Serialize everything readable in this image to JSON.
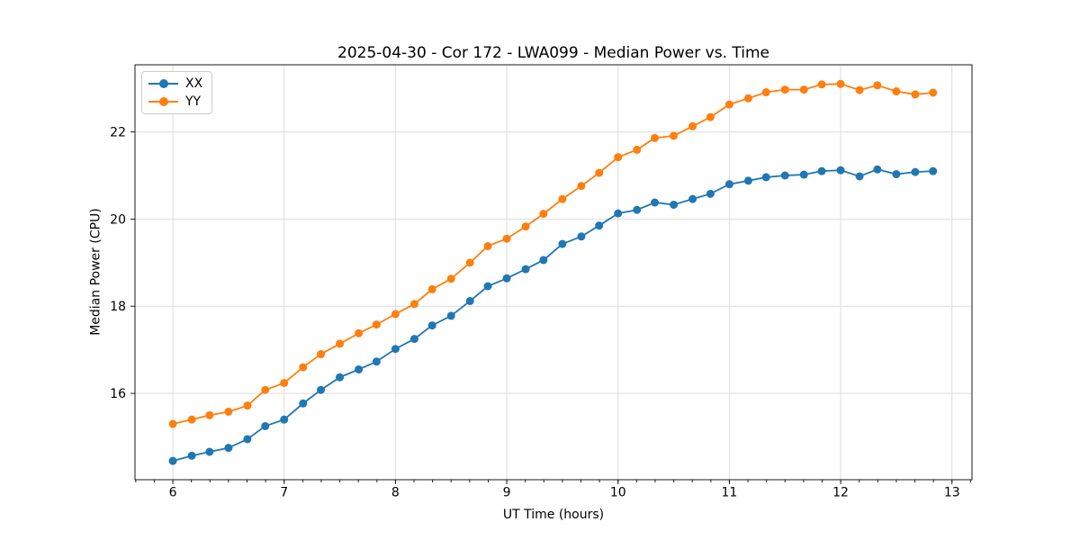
{
  "figure": {
    "background": "#ffffff",
    "spine_color": "#1a1a1a",
    "tick_color": "#1a1a1a"
  },
  "chart_data": {
    "type": "line",
    "title": "2025-04-30 - Cor 172 - LWA099 - Median Power vs. Time",
    "xlabel": "UT Time (hours)",
    "ylabel": "Median Power (CPU)",
    "xlim": [
      5.66,
      13.18
    ],
    "ylim": [
      14.02,
      23.54
    ],
    "x_major_ticks": [
      6,
      7,
      8,
      9,
      10,
      11,
      12,
      13
    ],
    "x_minor_tick_interval": 0.16667,
    "y_major_ticks": [
      16,
      18,
      20,
      22
    ],
    "grid": true,
    "grid_color": "#dddddd",
    "legend_position": "upper-left",
    "marker": "o",
    "x": [
      6.0,
      6.17,
      6.33,
      6.5,
      6.67,
      6.83,
      7.0,
      7.17,
      7.33,
      7.5,
      7.67,
      7.83,
      8.0,
      8.17,
      8.33,
      8.5,
      8.67,
      8.83,
      9.0,
      9.17,
      9.33,
      9.5,
      9.67,
      9.83,
      10.0,
      10.17,
      10.33,
      10.5,
      10.67,
      10.83,
      11.0,
      11.17,
      11.33,
      11.5,
      11.67,
      11.83,
      12.0,
      12.17,
      12.33,
      12.5,
      12.67,
      12.83
    ],
    "series": [
      {
        "name": "XX",
        "color": "#1f77b4",
        "values": [
          14.45,
          14.57,
          14.66,
          14.75,
          14.95,
          15.25,
          15.4,
          15.77,
          16.08,
          16.37,
          16.55,
          16.73,
          17.02,
          17.25,
          17.56,
          17.78,
          18.12,
          18.46,
          18.64,
          18.85,
          19.06,
          19.43,
          19.6,
          19.85,
          20.13,
          20.21,
          20.38,
          20.33,
          20.46,
          20.58,
          20.8,
          20.88,
          20.96,
          21.0,
          21.02,
          21.1,
          21.12,
          20.98,
          21.14,
          21.03,
          21.08,
          21.1
        ]
      },
      {
        "name": "YY",
        "color": "#ff7f0e",
        "values": [
          15.3,
          15.4,
          15.5,
          15.58,
          15.72,
          16.08,
          16.24,
          16.6,
          16.9,
          17.14,
          17.38,
          17.58,
          17.82,
          18.05,
          18.39,
          18.63,
          19.0,
          19.38,
          19.55,
          19.83,
          20.12,
          20.46,
          20.76,
          21.06,
          21.42,
          21.59,
          21.86,
          21.91,
          22.13,
          22.34,
          22.63,
          22.77,
          22.91,
          22.97,
          22.97,
          23.09,
          23.1,
          22.96,
          23.07,
          22.93,
          22.86,
          22.9
        ]
      }
    ]
  }
}
